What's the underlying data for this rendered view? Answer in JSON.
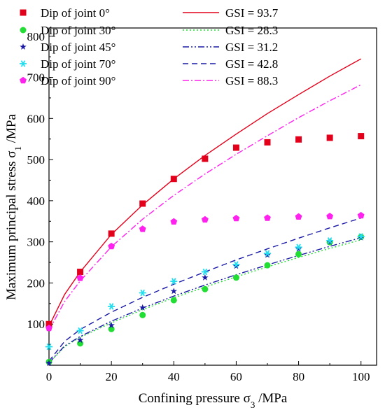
{
  "chart_data": {
    "type": "scatter",
    "xlabel": "Confining pressure σ",
    "xlabel_sub": "3",
    "xlabel_unit": " /MPa",
    "ylabel": "Maximum principal stress σ",
    "ylabel_sub": "1",
    "ylabel_unit": " /MPa",
    "xlim": [
      0,
      105
    ],
    "ylim": [
      0,
      820
    ],
    "xticks": [
      0,
      20,
      40,
      60,
      80,
      100
    ],
    "yticks": [
      100,
      200,
      300,
      400,
      500,
      600,
      700,
      800
    ],
    "grid": false,
    "legend_position": "top-left",
    "scatter_series": [
      {
        "name": "Dip of joint 0°",
        "color": "#e3001b",
        "marker": "square",
        "x": [
          0,
          10,
          20,
          30,
          40,
          50,
          60,
          70,
          80,
          90,
          100
        ],
        "y": [
          100,
          227,
          320,
          393,
          453,
          502,
          529,
          542,
          549,
          553,
          557
        ]
      },
      {
        "name": "Dip of joint 30°",
        "color": "#22dd33",
        "marker": "circle",
        "x": [
          0,
          10,
          20,
          30,
          40,
          50,
          60,
          70,
          80,
          90,
          100
        ],
        "y": [
          8,
          53,
          88,
          122,
          158,
          185,
          213,
          243,
          270,
          299,
          312
        ]
      },
      {
        "name": "Dip of joint 45°",
        "color": "#1a1aa6",
        "marker": "star",
        "x": [
          0,
          10,
          20,
          30,
          40,
          50,
          60,
          70,
          80,
          90,
          100
        ],
        "y": [
          5,
          61,
          97,
          140,
          180,
          213,
          241,
          268,
          283,
          300,
          310
        ]
      },
      {
        "name": "Dip of joint 70°",
        "color": "#22ddee",
        "marker": "asterisk",
        "x": [
          0,
          10,
          20,
          30,
          40,
          50,
          60,
          70,
          80,
          90,
          100
        ],
        "y": [
          45,
          84,
          143,
          176,
          204,
          227,
          245,
          272,
          287,
          303,
          313
        ]
      },
      {
        "name": "Dip of joint 90°",
        "color": "#ff22ee",
        "marker": "pentagon",
        "x": [
          0,
          10,
          20,
          30,
          40,
          50,
          60,
          70,
          80,
          90,
          100
        ],
        "y": [
          90,
          212,
          289,
          331,
          349,
          354,
          357,
          358,
          361,
          362,
          364
        ]
      }
    ],
    "line_series": [
      {
        "name": "GSI = 93.7",
        "color": "#e3001b",
        "dash": "solid",
        "x": [
          0,
          5,
          10,
          20,
          30,
          40,
          50,
          60,
          70,
          80,
          90,
          100
        ],
        "y": [
          95,
          172,
          227,
          318,
          390,
          453,
          510,
          562,
          612,
          658,
          703,
          745
        ]
      },
      {
        "name": "GSI = 28.3",
        "color": "#22dd33",
        "dash": "dot",
        "x": [
          0,
          5,
          10,
          20,
          30,
          40,
          50,
          60,
          70,
          80,
          90,
          100
        ],
        "y": [
          5,
          45,
          68,
          103,
          135,
          164,
          190,
          215,
          239,
          262,
          284,
          305
        ]
      },
      {
        "name": "GSI = 31.2",
        "color": "#1a1aa6",
        "dash": "dashdotdot",
        "x": [
          0,
          5,
          10,
          20,
          30,
          40,
          50,
          60,
          70,
          80,
          90,
          100
        ],
        "y": [
          6,
          47,
          70,
          107,
          139,
          168,
          195,
          220,
          244,
          267,
          289,
          310
        ]
      },
      {
        "name": "GSI = 42.8",
        "color": "#1a1aa6",
        "dash": "dash",
        "x": [
          0,
          5,
          10,
          20,
          30,
          40,
          50,
          60,
          70,
          80,
          90,
          100
        ],
        "y": [
          10,
          58,
          87,
          129,
          165,
          197,
          227,
          256,
          283,
          309,
          334,
          358
        ]
      },
      {
        "name": "GSI = 88.3",
        "color": "#ff22ee",
        "dash": "dashdot",
        "x": [
          0,
          5,
          10,
          20,
          30,
          40,
          50,
          60,
          70,
          80,
          90,
          100
        ],
        "y": [
          85,
          155,
          205,
          288,
          355,
          413,
          465,
          513,
          558,
          602,
          643,
          682
        ]
      }
    ]
  }
}
